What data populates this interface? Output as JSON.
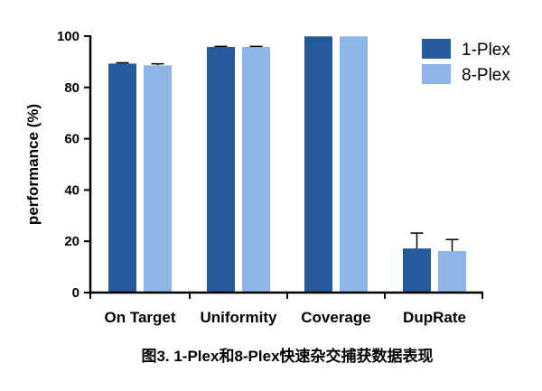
{
  "chart_data": {
    "type": "bar",
    "categories": [
      "On Target",
      "Uniformity",
      "Coverage",
      "DupRate"
    ],
    "series": [
      {
        "name": "1-Plex",
        "color": "#255b9b",
        "values": [
          89.3,
          95.8,
          99.9,
          17.2
        ],
        "error": [
          0.3,
          0.2,
          0,
          6
        ]
      },
      {
        "name": "8-Plex",
        "color": "#8db6e6",
        "values": [
          88.6,
          95.8,
          99.9,
          16.2
        ],
        "error": [
          0.6,
          0.2,
          0,
          4.5
        ]
      }
    ],
    "ylabel": "performance (%)",
    "ylim": [
      0,
      100
    ],
    "yticks": [
      0,
      20,
      40,
      60,
      80,
      100
    ],
    "legend_position": "top-right",
    "grid": false
  },
  "caption": "图3. 1-Plex和8-Plex快速杂交捕获数据表现"
}
